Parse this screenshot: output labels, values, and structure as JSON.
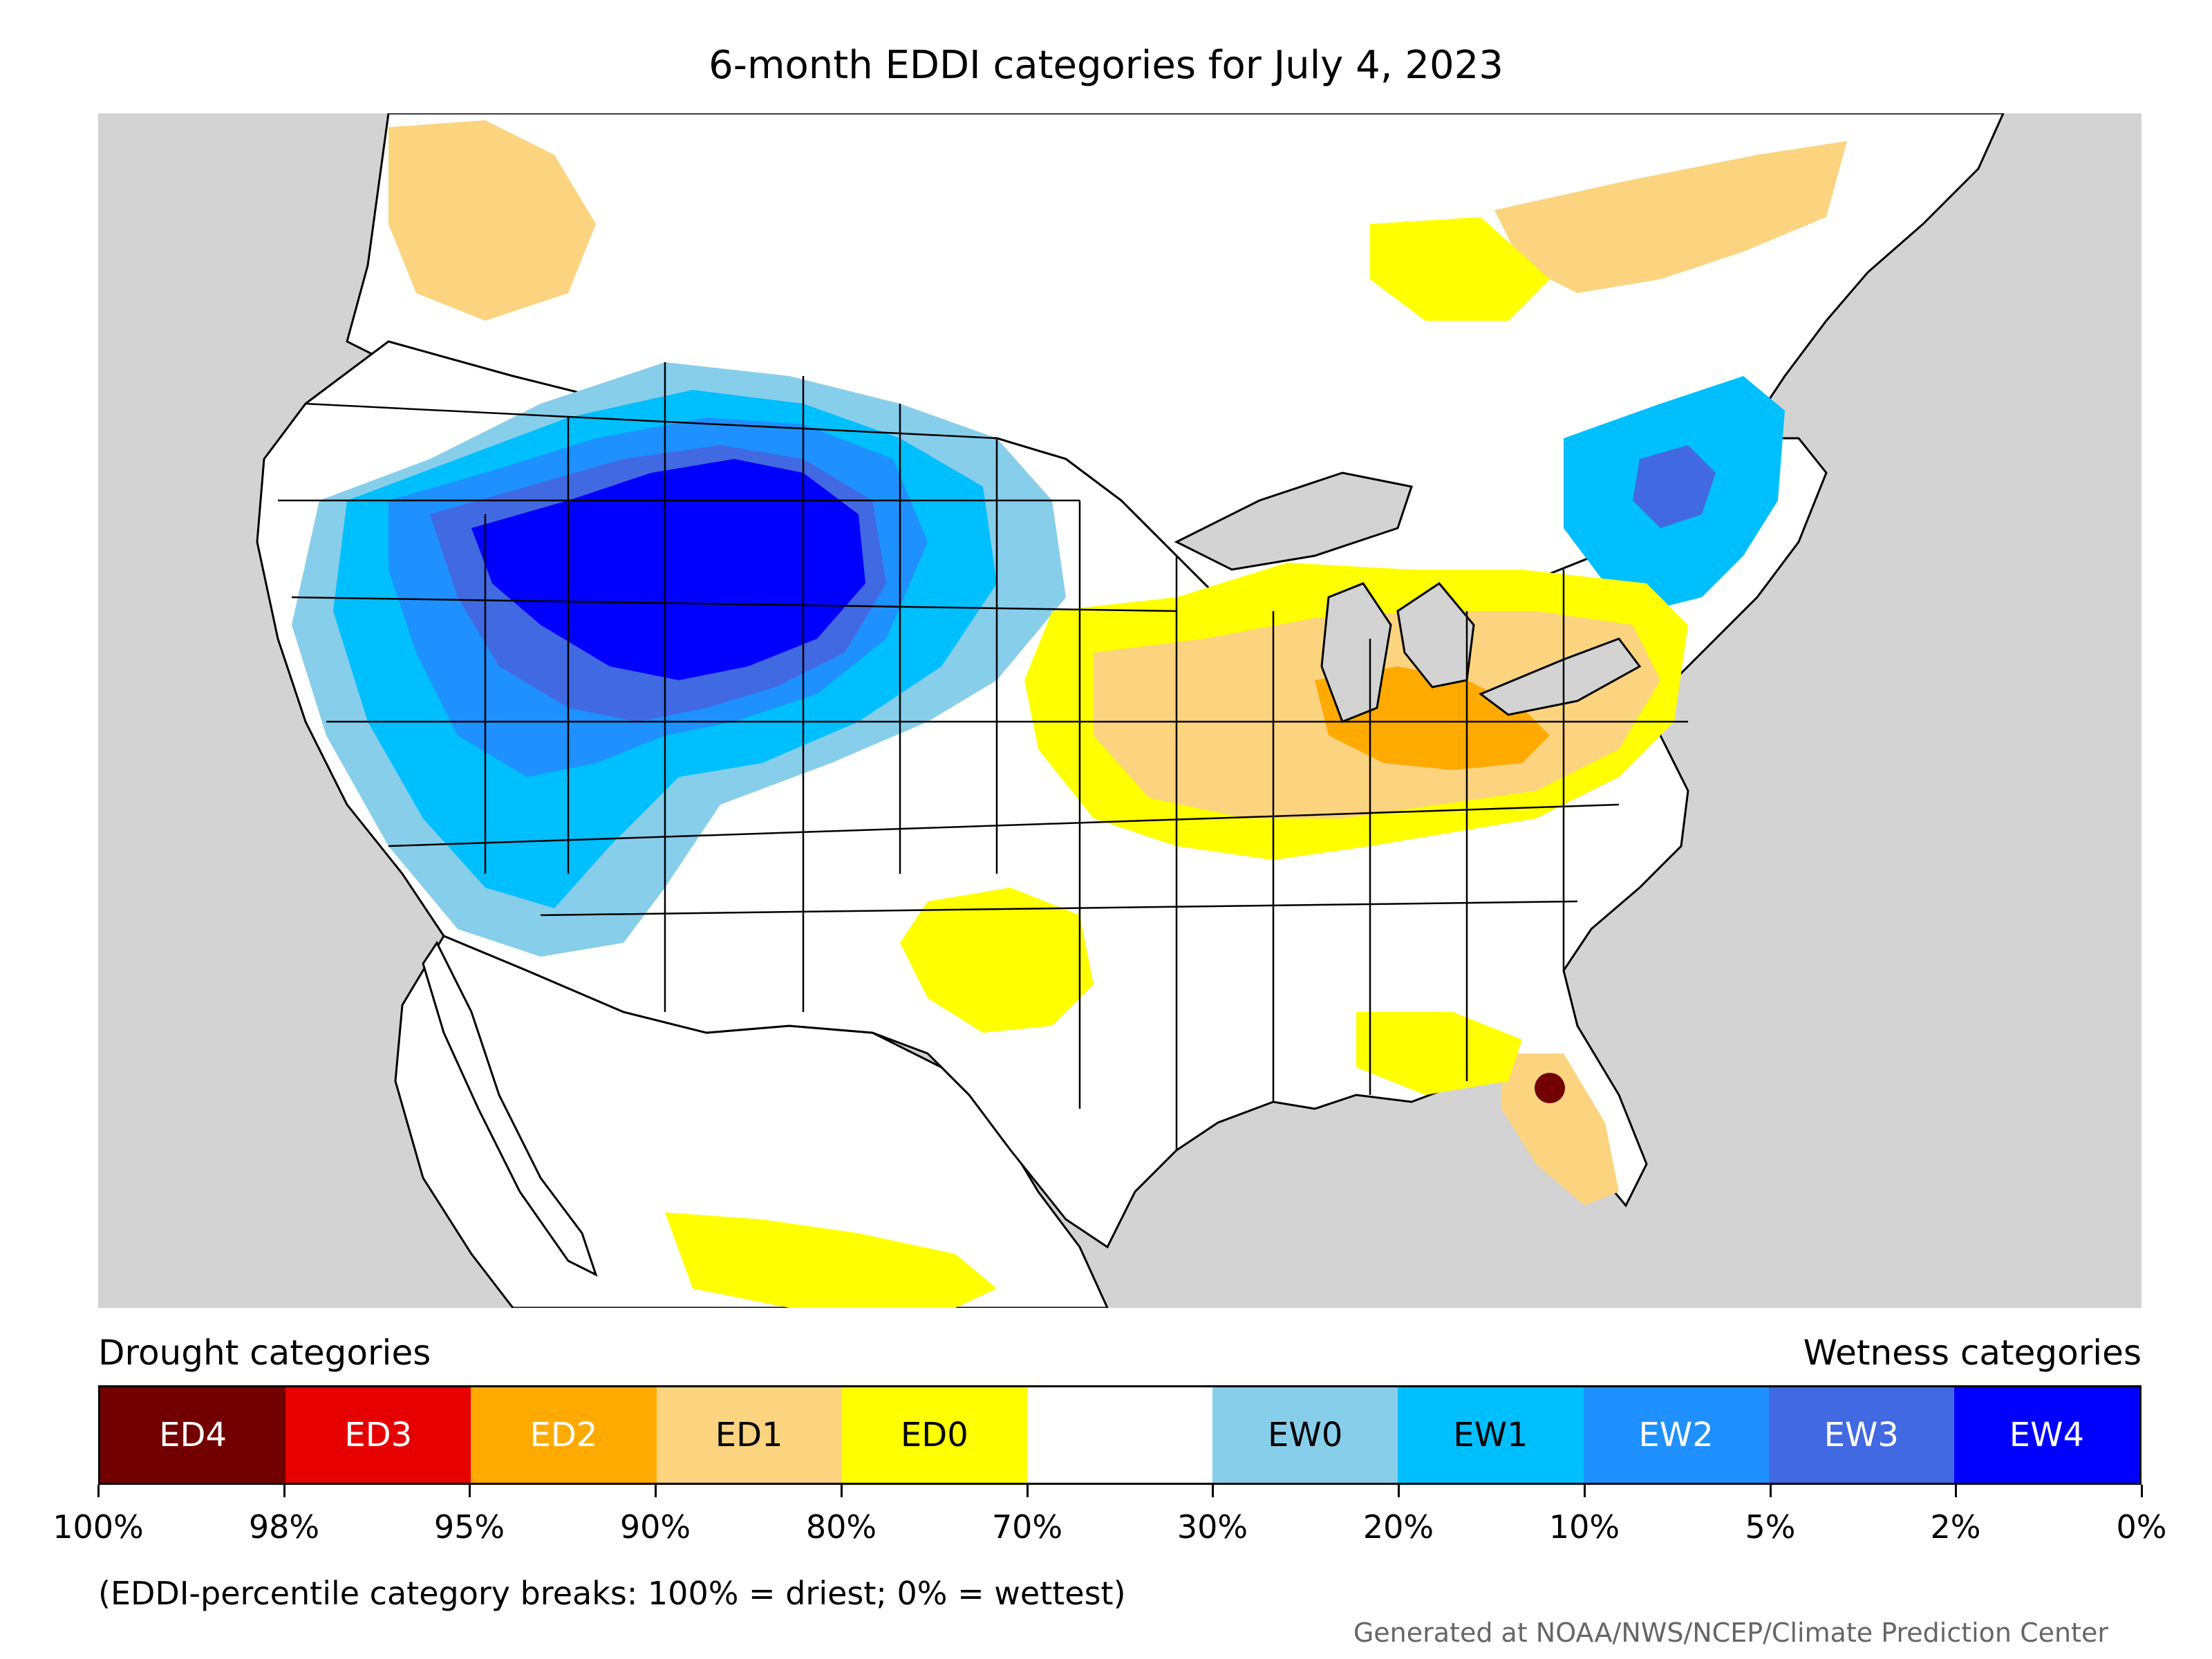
{
  "title": "6-month EDDI categories for July 4, 2023",
  "legend": {
    "left_heading": "Drought categories",
    "right_heading": "Wetness categories",
    "categories": [
      {
        "label": "ED4",
        "color": "#730000",
        "text_color": "#ffffff"
      },
      {
        "label": "ED3",
        "color": "#e60000",
        "text_color": "#ffffff"
      },
      {
        "label": "ED2",
        "color": "#ffaa00",
        "text_color": "#ffffff"
      },
      {
        "label": "ED1",
        "color": "#fcd37f",
        "text_color": "#000000"
      },
      {
        "label": "ED0",
        "color": "#ffff00",
        "text_color": "#000000"
      },
      {
        "label": "",
        "color": "#ffffff",
        "text_color": "#000000"
      },
      {
        "label": "EW0",
        "color": "#87ceeb",
        "text_color": "#000000"
      },
      {
        "label": "EW1",
        "color": "#00bfff",
        "text_color": "#000000"
      },
      {
        "label": "EW2",
        "color": "#1e90ff",
        "text_color": "#ffffff"
      },
      {
        "label": "EW3",
        "color": "#4169e1",
        "text_color": "#ffffff"
      },
      {
        "label": "EW4",
        "color": "#0000ff",
        "text_color": "#ffffff"
      }
    ],
    "breaks": [
      "100%",
      "98%",
      "95%",
      "90%",
      "80%",
      "70%",
      "30%",
      "20%",
      "10%",
      "5%",
      "2%",
      "0%"
    ]
  },
  "note": "(EDDI-percentile category breaks: 100% = driest; 0% = wettest)",
  "credit": "Generated at NOAA/NWS/NCEP/Climate Prediction Center",
  "colors": {
    "background_land_outside": "#d3d3d3",
    "water": "#d3d3d3",
    "border": "#000000"
  }
}
